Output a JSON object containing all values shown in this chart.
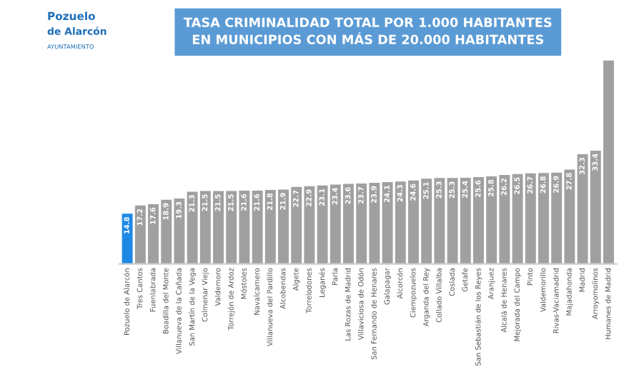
{
  "chart_data": {
    "type": "bar",
    "title": "TASA CRIMINALIDAD TOTAL POR 1.000 HABITANTES EN MUNICIPIOS CON MÁS DE 20.000 HABITANTES",
    "annotations": [
      "Pozuelo",
      "de Alarcón",
      "AYUNTAMIENTO"
    ],
    "relative": false,
    "categories": [
      "Pozuelo de Alarcón",
      "Tres Cantos",
      "Fuenlabrada",
      "Boadilla del Monte",
      "Villanueva de la Cañada",
      "San Martín de la Vega",
      "Colmenar Viejo",
      "Valdemoro",
      "Torrejón de Ardoz",
      "Móstoles",
      "Navalcarnero",
      "Villanueva del Pardillo",
      "Alcobendas",
      "Algete",
      "Torrelodones",
      "Leganés",
      "Parla",
      "Las Rozas de Madrid",
      "Villaviciosa de Odón",
      "San Fernando de Henares",
      "Galapagar",
      "Alcorcón",
      "Ciempozuelos",
      "Arganda del Rey",
      "Collado Villalba",
      "Coslada",
      "Getafe",
      "San Sebastián de los Reyes",
      "Aranjuez",
      "Alcalá de Henares",
      "Mejorada del Campo",
      "Pinto",
      "Valdemorillo",
      "Rivas-Vaciamadrid",
      "Majadahonda",
      "Madrid",
      "Arroyomolinos",
      "Humanes de Madrid"
    ],
    "values": [
      14.8,
      17.2,
      17.6,
      18.9,
      19.3,
      21.3,
      21.5,
      21.5,
      21.5,
      21.6,
      21.6,
      21.8,
      21.9,
      22.7,
      22.9,
      23.1,
      23.4,
      23.6,
      23.7,
      23.9,
      24.1,
      24.3,
      24.6,
      25.1,
      25.3,
      25.3,
      25.4,
      25.6,
      25.8,
      26.2,
      26.5,
      26.7,
      26.8,
      26.9,
      27.8,
      32.3,
      33.4,
      60
    ],
    "value_labels": [
      "14.8",
      "17.2",
      "17.6",
      "18.9",
      "19.3",
      "21.3",
      "21.5",
      "21.5",
      "21.5",
      "21.6",
      "21.6",
      "21.8",
      "21.9",
      "22.7",
      "22.9",
      "23.1",
      "23.4",
      "23.6",
      "23.7",
      "23.9",
      "24.1",
      "24.3",
      "24.6",
      "25.1",
      "25.3",
      "25.3",
      "25.4",
      "25.6",
      "25.8",
      "26.2",
      "26.5",
      "26.7",
      "26.8",
      "26.9",
      "27.8",
      "32.3",
      "33.4",
      null
    ],
    "colors": [
      "#1e88e5",
      "#a0a0a0",
      "#a0a0a0",
      "#a0a0a0",
      "#a0a0a0",
      "#a0a0a0",
      "#a0a0a0",
      "#a0a0a0",
      "#a0a0a0",
      "#a0a0a0",
      "#a0a0a0",
      "#a0a0a0",
      "#a0a0a0",
      "#a0a0a0",
      "#a0a0a0",
      "#a0a0a0",
      "#a0a0a0",
      "#a0a0a0",
      "#a0a0a0",
      "#a0a0a0",
      "#a0a0a0",
      "#a0a0a0",
      "#a0a0a0",
      "#a0a0a0",
      "#a0a0a0",
      "#a0a0a0",
      "#a0a0a0",
      "#a0a0a0",
      "#a0a0a0",
      "#a0a0a0",
      "#a0a0a0",
      "#a0a0a0",
      "#a0a0a0",
      "#a0a0a0",
      "#a0a0a0",
      "#a0a0a0",
      "#a0a0a0",
      "#a0a0a0"
    ],
    "ylim": [
      0,
      60
    ],
    "tick_labels": "x",
    "grid": false,
    "legend": false
  }
}
